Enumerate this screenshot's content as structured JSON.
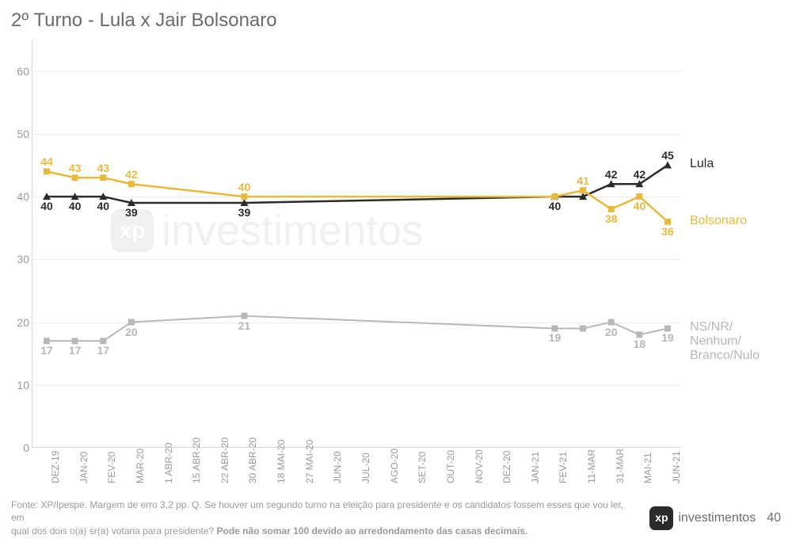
{
  "title": "2º Turno - Lula x Jair Bolsonaro",
  "chart": {
    "type": "line",
    "ylim": [
      0,
      65
    ],
    "yticks": [
      0,
      10,
      20,
      30,
      40,
      50,
      60
    ],
    "grid_color": "#ededed",
    "axis_color": "#d8d8d8",
    "background_color": "#ffffff",
    "tick_fontsize": 14,
    "tick_color": "#9a9a9a",
    "x_categories": [
      "DEZ-19",
      "JAN-20",
      "FEV-20",
      "MAR-20",
      "1 ABR-20",
      "15 ABR-20",
      "22 ABR-20",
      "30 ABR-20",
      "18 MAI-20",
      "27 MAI-20",
      "JUN-20",
      "JUL-20",
      "AGO-20",
      "SET-20",
      "OUT-20",
      "NOV-20",
      "DEZ-20",
      "JAN-21",
      "FEV-21",
      "11-MAR",
      "31-MAR",
      "MAI-21",
      "JUN-21"
    ],
    "label_offset_above": 18,
    "label_offset_below": 4,
    "series": [
      {
        "name": "Lula",
        "color": "#2b2b2b",
        "marker": "triangle",
        "line_width": 2.5,
        "label_fontsize": 14,
        "points": [
          {
            "x": 0,
            "y": 40,
            "label": "40",
            "pos": "below"
          },
          {
            "x": 1,
            "y": 40,
            "label": "40",
            "pos": "below"
          },
          {
            "x": 2,
            "y": 40,
            "label": "40",
            "pos": "below"
          },
          {
            "x": 3,
            "y": 39,
            "label": "39",
            "pos": "below"
          },
          {
            "x": 7,
            "y": 39,
            "label": "39",
            "pos": "below"
          },
          {
            "x": 18,
            "y": 40,
            "label": "40",
            "pos": "below"
          },
          {
            "x": 19,
            "y": 40,
            "label": "",
            "pos": "below"
          },
          {
            "x": 20,
            "y": 42,
            "label": "42",
            "pos": "above"
          },
          {
            "x": 21,
            "y": 42,
            "label": "42",
            "pos": "above"
          },
          {
            "x": 22,
            "y": 45,
            "label": "45",
            "pos": "above"
          }
        ],
        "end_label": "Lula",
        "end_label_color": "#2b2b2b"
      },
      {
        "name": "Bolsonaro",
        "color": "#e8b93a",
        "marker": "square",
        "line_width": 2.5,
        "label_fontsize": 14,
        "points": [
          {
            "x": 0,
            "y": 44,
            "label": "44",
            "pos": "above"
          },
          {
            "x": 1,
            "y": 43,
            "label": "43",
            "pos": "above"
          },
          {
            "x": 2,
            "y": 43,
            "label": "43",
            "pos": "above"
          },
          {
            "x": 3,
            "y": 42,
            "label": "42",
            "pos": "above"
          },
          {
            "x": 7,
            "y": 40,
            "label": "40",
            "pos": "above"
          },
          {
            "x": 18,
            "y": 40,
            "label": "",
            "pos": "above"
          },
          {
            "x": 19,
            "y": 41,
            "label": "41",
            "pos": "above"
          },
          {
            "x": 20,
            "y": 38,
            "label": "38",
            "pos": "below"
          },
          {
            "x": 21,
            "y": 40,
            "label": "40",
            "pos": "below"
          },
          {
            "x": 22,
            "y": 36,
            "label": "36",
            "pos": "below"
          }
        ],
        "end_label": "Bolsonaro",
        "end_label_color": "#e8b93a"
      },
      {
        "name": "NS/NR",
        "color": "#b8b8b8",
        "marker": "square",
        "line_width": 2,
        "label_fontsize": 14,
        "points": [
          {
            "x": 0,
            "y": 17,
            "label": "17",
            "pos": "below"
          },
          {
            "x": 1,
            "y": 17,
            "label": "17",
            "pos": "below"
          },
          {
            "x": 2,
            "y": 17,
            "label": "17",
            "pos": "below"
          },
          {
            "x": 3,
            "y": 20,
            "label": "20",
            "pos": "below"
          },
          {
            "x": 7,
            "y": 21,
            "label": "21",
            "pos": "below"
          },
          {
            "x": 18,
            "y": 19,
            "label": "19",
            "pos": "below"
          },
          {
            "x": 19,
            "y": 19,
            "label": "",
            "pos": "below"
          },
          {
            "x": 20,
            "y": 20,
            "label": "20",
            "pos": "below"
          },
          {
            "x": 21,
            "y": 18,
            "label": "18",
            "pos": "below"
          },
          {
            "x": 22,
            "y": 19,
            "label": "19",
            "pos": "below"
          }
        ],
        "end_label": "NS/NR/\nNenhum/\nBranco/Nulo",
        "end_label_color": "#b8b8b8"
      }
    ]
  },
  "watermark": {
    "box": "xp",
    "text": "investimentos"
  },
  "footer": {
    "text_line1": "Fonte: XP/Ipespe. Margem de erro 3,2 pp. Q. Se houver um segundo turno na eleição para presidente e os candidatos fossem esses que vou ler, em",
    "text_line2": "qual dos dois o(a) sr(a) votaria para presidente? ",
    "text_bold": "Pode não somar 100 devido ao arredondamento das casas decimais.",
    "logo_box": "xp",
    "logo_text": "investimentos",
    "page": "40"
  }
}
